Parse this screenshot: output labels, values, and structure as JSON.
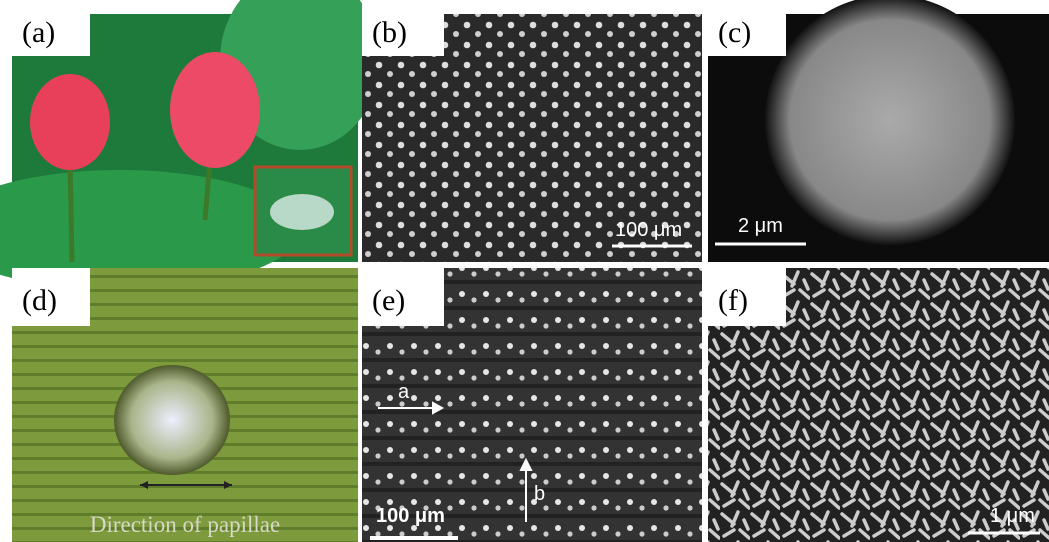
{
  "panels": [
    {
      "label": "(a)"
    },
    {
      "label": "(b)",
      "scale_bar": "100 μm"
    },
    {
      "label": "(c)",
      "scale_bar": "2 μm"
    },
    {
      "label": "(d)",
      "caption": "Direction of papillae"
    },
    {
      "label": "(e)",
      "scale_bar": "100 μm",
      "arrows": [
        "a",
        "b"
      ]
    },
    {
      "label": "(f)",
      "scale_bar": "1 μm"
    }
  ]
}
